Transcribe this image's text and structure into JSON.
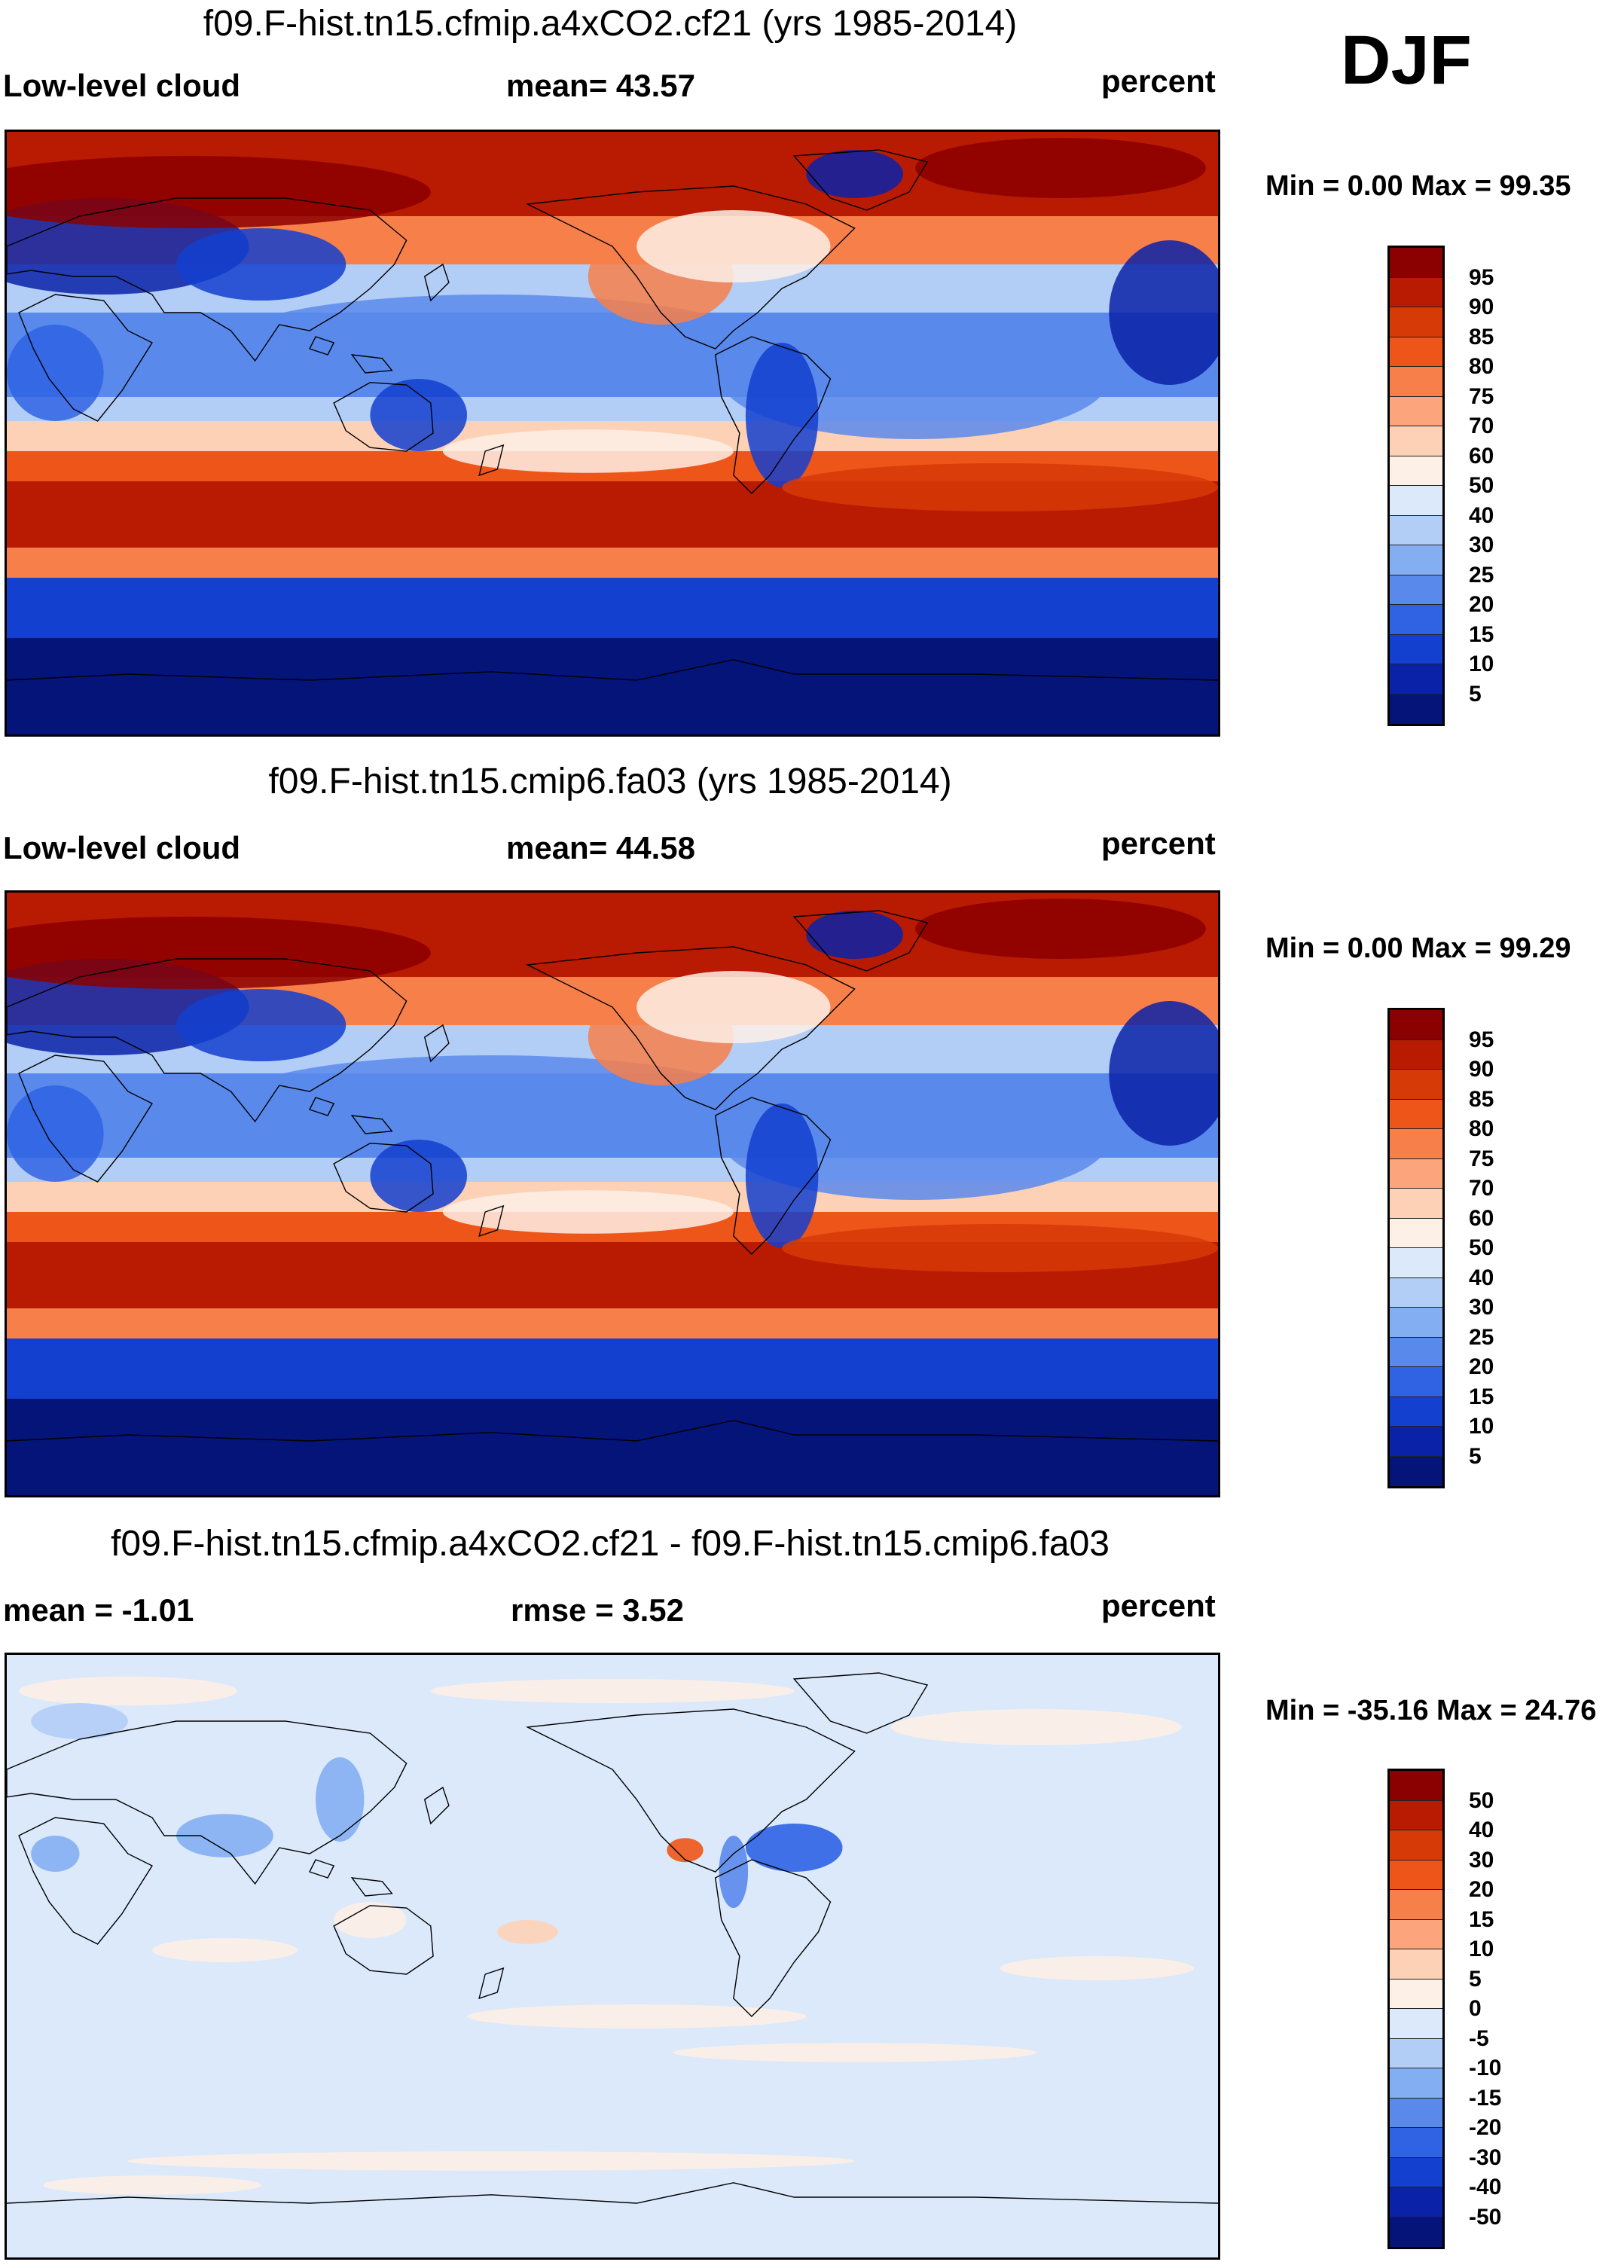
{
  "season": "DJF",
  "panels": [
    {
      "title": "f09.F-hist.tn15.cfmip.a4xCO2.cf21 (yrs 1985-2014)",
      "left_label": "Low-level cloud",
      "center_label": "mean=  43.57",
      "units": "percent",
      "minmax": "Min =   0.00 Max =  99.35",
      "type": "absolute",
      "colorbar_labels": [
        "95",
        "90",
        "85",
        "80",
        "75",
        "70",
        "60",
        "50",
        "40",
        "30",
        "25",
        "20",
        "15",
        "10",
        "5"
      ],
      "colorbar_colors": [
        "#8b0000",
        "#b81a02",
        "#d63a07",
        "#ee5518",
        "#f77f4a",
        "#fca57d",
        "#fdd1b6",
        "#fdf0e6",
        "#dbe9fa",
        "#b2cdf6",
        "#84aef2",
        "#5a89ec",
        "#2f63e4",
        "#1340cf",
        "#0922a8",
        "#041478"
      ]
    },
    {
      "title": "f09.F-hist.tn15.cmip6.fa03 (yrs 1985-2014)",
      "left_label": "Low-level cloud",
      "center_label": "mean=  44.58",
      "units": "percent",
      "minmax": "Min =   0.00 Max =  99.29",
      "type": "absolute",
      "colorbar_labels": [
        "95",
        "90",
        "85",
        "80",
        "75",
        "70",
        "60",
        "50",
        "40",
        "30",
        "25",
        "20",
        "15",
        "10",
        "5"
      ],
      "colorbar_colors": [
        "#8b0000",
        "#b81a02",
        "#d63a07",
        "#ee5518",
        "#f77f4a",
        "#fca57d",
        "#fdd1b6",
        "#fdf0e6",
        "#dbe9fa",
        "#b2cdf6",
        "#84aef2",
        "#5a89ec",
        "#2f63e4",
        "#1340cf",
        "#0922a8",
        "#041478"
      ]
    },
    {
      "title": "f09.F-hist.tn15.cfmip.a4xCO2.cf21 - f09.F-hist.tn15.cmip6.fa03",
      "left_label": "mean =  -1.01",
      "center_label": "rmse =   3.52",
      "units": "percent",
      "minmax": "Min = -35.16 Max =  24.76",
      "type": "difference",
      "colorbar_labels": [
        "50",
        "40",
        "30",
        "20",
        "15",
        "10",
        "5",
        "0",
        "-5",
        "-10",
        "-15",
        "-20",
        "-30",
        "-40",
        "-50"
      ],
      "colorbar_colors": [
        "#8b0000",
        "#b81a02",
        "#d63a07",
        "#ee5518",
        "#f77f4a",
        "#fca57d",
        "#fdd1b6",
        "#fdf0e6",
        "#dbe9fa",
        "#b2cdf6",
        "#84aef2",
        "#5a89ec",
        "#2f63e4",
        "#1340cf",
        "#0922a8",
        "#041478"
      ]
    }
  ]
}
